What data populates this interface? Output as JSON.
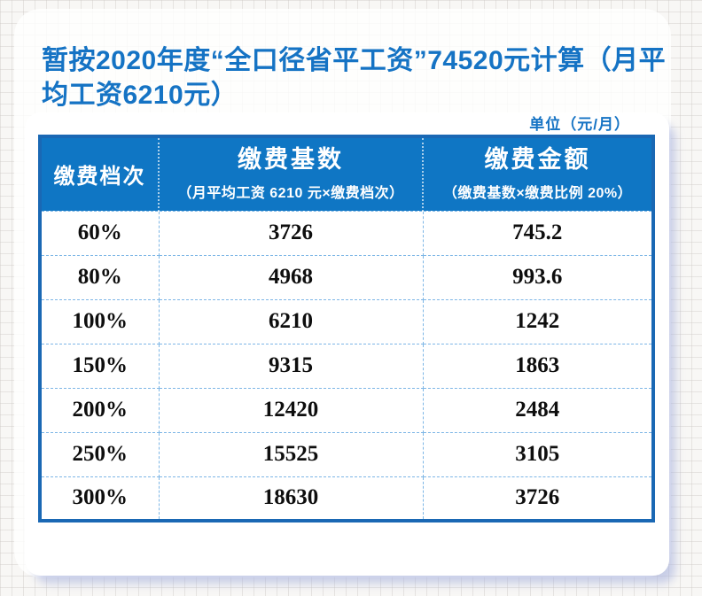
{
  "page": {
    "title": "暂按2020年度“全口径省平工资”74520元计算（月平均工资6210元）",
    "unit_label": "单位（元/月）"
  },
  "table": {
    "columns": [
      {
        "label": "缴费档次",
        "sublabel": ""
      },
      {
        "label": "缴费基数",
        "sublabel": "（月平均工资 6210 元×缴费档次）"
      },
      {
        "label": "缴费金额",
        "sublabel": "（缴费基数×缴费比例 20%）"
      }
    ],
    "rows": [
      [
        "60%",
        "3726",
        "745.2"
      ],
      [
        "80%",
        "4968",
        "993.6"
      ],
      [
        "100%",
        "6210",
        "1242"
      ],
      [
        "150%",
        "9315",
        "1863"
      ],
      [
        "200%",
        "12420",
        "2484"
      ],
      [
        "250%",
        "15525",
        "3105"
      ],
      [
        "300%",
        "18630",
        "3726"
      ]
    ]
  },
  "colors": {
    "accent_blue": "#1573c4",
    "header_bg": "#0f76c4",
    "table_border": "#1a68b4",
    "dashed_line": "#7db6e6"
  }
}
